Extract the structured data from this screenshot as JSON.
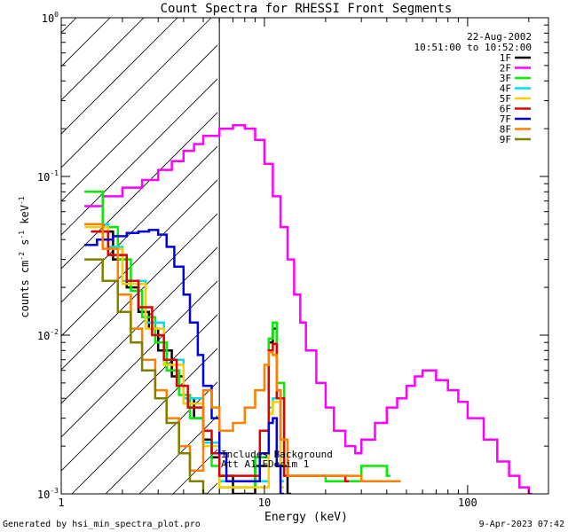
{
  "chart_data": {
    "type": "line",
    "title": "Count Spectra for RHESSI Front Segments",
    "xlabel": "Energy (keV)",
    "ylabel_parts": {
      "base": "counts cm",
      "exp1": "-2",
      "mid": " s",
      "exp2": "-1",
      "mid2": " keV",
      "exp3": "-1"
    },
    "xscale": "log",
    "yscale": "log",
    "xlim": [
      1,
      250
    ],
    "ylim": [
      0.001,
      1
    ],
    "x_ticks": [
      {
        "value": 1,
        "label": "1"
      },
      {
        "value": 10,
        "label": "10"
      },
      {
        "value": 100,
        "label": "100"
      }
    ],
    "y_ticks": [
      {
        "value": 1,
        "base": "10",
        "exp": "0"
      },
      {
        "value": 0.1,
        "base": "10",
        "exp": "-1"
      },
      {
        "value": 0.01,
        "base": "10",
        "exp": "-2"
      },
      {
        "value": 0.001,
        "base": "10",
        "exp": "-3"
      }
    ],
    "hatched_region": [
      1,
      6
    ],
    "date": "22-Aug-2002",
    "time_range": "10:51:00 to 10:52:00",
    "annotations": [
      "Includes Background",
      "Att A1  FDecim 1"
    ],
    "footer_left": "Generated by hsi_min_spectra_plot.pro",
    "footer_right": "9-Apr-2023 07:42",
    "series": [
      {
        "name": "1F",
        "color": "#000000",
        "points": [
          [
            1.5,
            0.045
          ],
          [
            1.8,
            0.03
          ],
          [
            2.1,
            0.02
          ],
          [
            2.4,
            0.014
          ],
          [
            2.7,
            0.011
          ],
          [
            3.0,
            0.008
          ],
          [
            3.5,
            0.0055
          ],
          [
            4.0,
            0.004
          ],
          [
            4.5,
            0.003
          ],
          [
            5.0,
            0.0022
          ],
          [
            5.5,
            0.0017
          ],
          [
            6.0,
            0.0013
          ],
          [
            7.0,
            0.001
          ],
          [
            9.0,
            0.0015
          ],
          [
            10.5,
            0.009
          ],
          [
            11,
            0.011
          ],
          [
            11.5,
            0.0045
          ],
          [
            12,
            0.0015
          ],
          [
            13,
            0.001
          ]
        ]
      },
      {
        "name": "2F",
        "color": "#ff00ff",
        "points": [
          [
            1.3,
            0.065
          ],
          [
            1.6,
            0.075
          ],
          [
            2.0,
            0.085
          ],
          [
            2.5,
            0.095
          ],
          [
            3.0,
            0.11
          ],
          [
            3.5,
            0.125
          ],
          [
            4.0,
            0.145
          ],
          [
            4.5,
            0.16
          ],
          [
            5.0,
            0.18
          ],
          [
            6.0,
            0.2
          ],
          [
            7.0,
            0.21
          ],
          [
            8.0,
            0.2
          ],
          [
            9.0,
            0.17
          ],
          [
            10,
            0.12
          ],
          [
            11,
            0.075
          ],
          [
            12,
            0.048
          ],
          [
            13,
            0.03
          ],
          [
            14,
            0.018
          ],
          [
            15,
            0.012
          ],
          [
            16,
            0.008
          ],
          [
            18,
            0.005
          ],
          [
            20,
            0.0035
          ],
          [
            22,
            0.0025
          ],
          [
            25,
            0.002
          ],
          [
            28,
            0.0018
          ],
          [
            30,
            0.0022
          ],
          [
            35,
            0.0028
          ],
          [
            40,
            0.0035
          ],
          [
            45,
            0.004
          ],
          [
            50,
            0.0048
          ],
          [
            55,
            0.0055
          ],
          [
            60,
            0.006
          ],
          [
            70,
            0.0052
          ],
          [
            80,
            0.0045
          ],
          [
            90,
            0.0038
          ],
          [
            100,
            0.003
          ],
          [
            120,
            0.0022
          ],
          [
            140,
            0.0016
          ],
          [
            160,
            0.0013
          ],
          [
            180,
            0.0011
          ],
          [
            200,
            0.001
          ]
        ]
      },
      {
        "name": "3F",
        "color": "#00ee00",
        "points": [
          [
            1.3,
            0.08
          ],
          [
            1.6,
            0.048
          ],
          [
            1.9,
            0.03
          ],
          [
            2.2,
            0.019
          ],
          [
            2.5,
            0.013
          ],
          [
            2.9,
            0.009
          ],
          [
            3.3,
            0.006
          ],
          [
            3.8,
            0.0042
          ],
          [
            4.3,
            0.003
          ],
          [
            5.0,
            0.0021
          ],
          [
            5.5,
            0.0015
          ],
          [
            6.0,
            0.0011
          ],
          [
            9.0,
            0.0017
          ],
          [
            10.5,
            0.0095
          ],
          [
            11,
            0.012
          ],
          [
            11.5,
            0.005
          ],
          [
            12.5,
            0.0013
          ],
          [
            20,
            0.0012
          ],
          [
            30,
            0.0015
          ],
          [
            40,
            0.0013
          ]
        ]
      },
      {
        "name": "4F",
        "color": "#00ddee",
        "points": [
          [
            1.3,
            0.05
          ],
          [
            1.7,
            0.036
          ],
          [
            2.0,
            0.022
          ],
          [
            2.6,
            0.012
          ],
          [
            3.2,
            0.007
          ],
          [
            4.0,
            0.004
          ],
          [
            5.0,
            0.0021
          ],
          [
            6.0,
            0.0012
          ],
          [
            10.5,
            0.0035
          ],
          [
            11,
            0.004
          ],
          [
            12,
            0.0012
          ]
        ]
      },
      {
        "name": "5F",
        "color": "#ffcc00",
        "points": [
          [
            1.3,
            0.048
          ],
          [
            1.7,
            0.035
          ],
          [
            2.0,
            0.021
          ],
          [
            2.6,
            0.011
          ],
          [
            3.2,
            0.0065
          ],
          [
            4.0,
            0.0037
          ],
          [
            5.0,
            0.002
          ],
          [
            6.0,
            0.0011
          ],
          [
            10.5,
            0.0032
          ],
          [
            11,
            0.0038
          ],
          [
            12,
            0.0011
          ]
        ]
      },
      {
        "name": "6F",
        "color": "#dd0000",
        "points": [
          [
            1.4,
            0.045
          ],
          [
            1.7,
            0.032
          ],
          [
            2.1,
            0.022
          ],
          [
            2.4,
            0.015
          ],
          [
            2.8,
            0.01
          ],
          [
            3.2,
            0.007
          ],
          [
            3.7,
            0.0048
          ],
          [
            4.2,
            0.0035
          ],
          [
            5.0,
            0.0025
          ],
          [
            5.5,
            0.0018
          ],
          [
            6.0,
            0.0013
          ],
          [
            9.5,
            0.0025
          ],
          [
            10.5,
            0.008
          ],
          [
            11,
            0.0088
          ],
          [
            11.5,
            0.004
          ],
          [
            12.5,
            0.0013
          ],
          [
            25,
            0.0012
          ]
        ]
      },
      {
        "name": "7F",
        "color": "#0000dd",
        "points": [
          [
            1.3,
            0.037
          ],
          [
            1.5,
            0.04
          ],
          [
            1.8,
            0.042
          ],
          [
            2.1,
            0.044
          ],
          [
            2.4,
            0.045
          ],
          [
            2.7,
            0.046
          ],
          [
            3.0,
            0.043
          ],
          [
            3.3,
            0.036
          ],
          [
            3.6,
            0.027
          ],
          [
            4.0,
            0.018
          ],
          [
            4.3,
            0.012
          ],
          [
            4.7,
            0.0075
          ],
          [
            5.0,
            0.0048
          ],
          [
            5.5,
            0.003
          ],
          [
            6.0,
            0.0018
          ],
          [
            6.5,
            0.0012
          ],
          [
            9.5,
            0.0018
          ],
          [
            10.5,
            0.0028
          ],
          [
            11,
            0.003
          ],
          [
            11.5,
            0.0015
          ],
          [
            12,
            0.001
          ]
        ]
      },
      {
        "name": "8F",
        "color": "#ff7f00",
        "points": [
          [
            1.3,
            0.05
          ],
          [
            1.6,
            0.035
          ],
          [
            1.9,
            0.018
          ],
          [
            2.2,
            0.011
          ],
          [
            2.5,
            0.007
          ],
          [
            2.9,
            0.0045
          ],
          [
            3.3,
            0.003
          ],
          [
            3.8,
            0.002
          ],
          [
            4.3,
            0.0014
          ],
          [
            5.0,
            0.0045
          ],
          [
            5.5,
            0.0035
          ],
          [
            6.0,
            0.0025
          ],
          [
            7,
            0.0028
          ],
          [
            8,
            0.0035
          ],
          [
            9,
            0.0045
          ],
          [
            10,
            0.0065
          ],
          [
            10.5,
            0.0078
          ],
          [
            11,
            0.0075
          ],
          [
            11.5,
            0.0045
          ],
          [
            12,
            0.0022
          ],
          [
            13,
            0.0013
          ],
          [
            30,
            0.0012
          ],
          [
            45,
            0.0012
          ]
        ]
      },
      {
        "name": "9F",
        "color": "#808000",
        "points": [
          [
            1.3,
            0.03
          ],
          [
            1.6,
            0.022
          ],
          [
            1.9,
            0.014
          ],
          [
            2.2,
            0.009
          ],
          [
            2.5,
            0.006
          ],
          [
            2.9,
            0.004
          ],
          [
            3.3,
            0.0028
          ],
          [
            3.8,
            0.0018
          ],
          [
            4.3,
            0.0012
          ],
          [
            5.0,
            0.001
          ]
        ]
      }
    ]
  }
}
